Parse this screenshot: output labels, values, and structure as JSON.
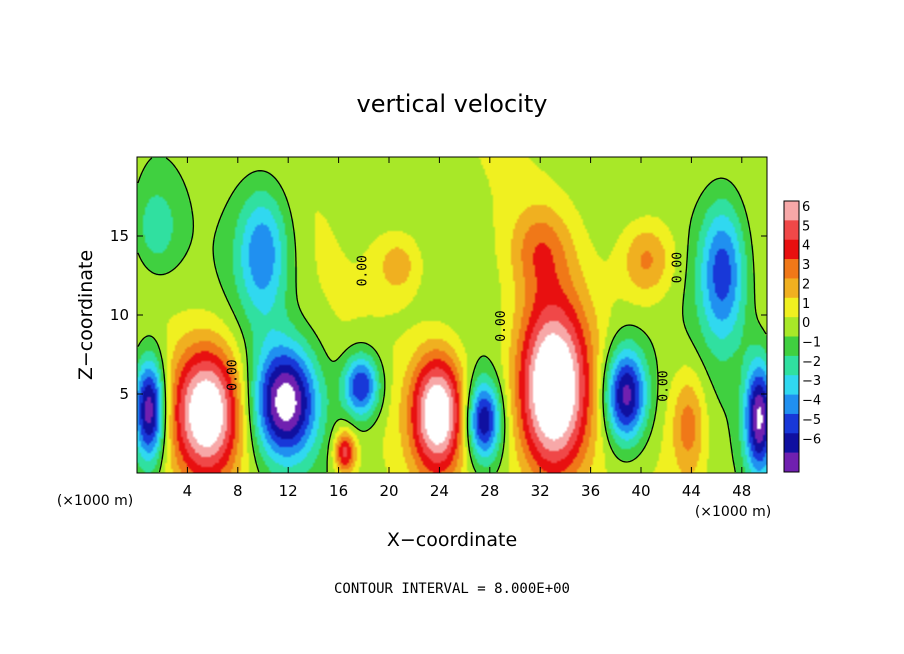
{
  "chart_data": {
    "type": "heatmap",
    "title": "vertical velocity",
    "xlabel": "X−coordinate",
    "ylabel": "Z−coordinate",
    "x_unit_left": "(×1000 m)",
    "x_unit_right": "(×1000 m)",
    "footer": "CONTOUR INTERVAL = 8.000E+00",
    "xlim": [
      0,
      50
    ],
    "ylim": [
      0,
      20
    ],
    "x_ticks": [
      "4",
      "8",
      "12",
      "16",
      "20",
      "24",
      "28",
      "32",
      "36",
      "40",
      "44",
      "48"
    ],
    "x_tick_values": [
      4,
      8,
      12,
      16,
      20,
      24,
      28,
      32,
      36,
      40,
      44,
      48
    ],
    "y_ticks": [
      "5",
      "10",
      "15"
    ],
    "y_tick_values": [
      5,
      10,
      15
    ],
    "colorbar": {
      "labels": [
        "6",
        "5",
        "4",
        "3",
        "2",
        "1",
        "0",
        "−1",
        "−2",
        "−3",
        "−4",
        "−5",
        "−6"
      ],
      "colors": [
        "#f7a8a8",
        "#f04848",
        "#e81010",
        "#f07818",
        "#f0b020",
        "#f0f020",
        "#a8e828",
        "#40d040",
        "#30e0a0",
        "#30d8f0",
        "#2090f0",
        "#1838d8",
        "#1010a0",
        "#7020b0"
      ]
    },
    "contour_labels": [
      {
        "text": "0.00",
        "x": 18.2,
        "z": 12.8
      },
      {
        "text": "0.00",
        "x": 43.2,
        "z": 13.0
      },
      {
        "text": "0.00",
        "x": 29.2,
        "z": 9.3
      },
      {
        "text": "0.00",
        "x": 7.9,
        "z": 6.2
      },
      {
        "text": "0.00",
        "x": 42.1,
        "z": 5.5
      }
    ],
    "features": [
      {
        "kind": "updraft",
        "x": 5.6,
        "z": 3.9,
        "rx": 2.6,
        "rz": 4.0,
        "w": 8
      },
      {
        "kind": "updraft",
        "x": 23.9,
        "z": 3.8,
        "rx": 2.0,
        "rz": 3.6,
        "w": 8
      },
      {
        "kind": "updraft",
        "x": 33.0,
        "z": 5.2,
        "rx": 2.7,
        "rz": 5.4,
        "w": 9
      },
      {
        "kind": "updraft",
        "x": 16.5,
        "z": 1.3,
        "rx": 0.8,
        "rz": 1.3,
        "w": 5
      },
      {
        "kind": "updraft",
        "x": 43.8,
        "z": 3.1,
        "rx": 1.3,
        "rz": 3.2,
        "w": 3
      },
      {
        "kind": "updraft",
        "x": 32.0,
        "z": 14.2,
        "rx": 2.2,
        "rz": 2.6,
        "w": 2.4
      },
      {
        "kind": "updraft",
        "x": 40.5,
        "z": 13.5,
        "rx": 2.0,
        "rz": 2.4,
        "w": 3
      },
      {
        "kind": "updraft",
        "x": 20.8,
        "z": 13.2,
        "rx": 1.8,
        "rz": 2.0,
        "w": 2.2
      },
      {
        "kind": "downdraft",
        "x": 11.8,
        "z": 4.5,
        "rx": 2.4,
        "rz": 3.4,
        "w": -8
      },
      {
        "kind": "downdraft",
        "x": 1.0,
        "z": 4.0,
        "rx": 1.2,
        "rz": 3.2,
        "w": -8
      },
      {
        "kind": "downdraft",
        "x": 38.8,
        "z": 4.9,
        "rx": 1.6,
        "rz": 2.9,
        "w": -7.5
      },
      {
        "kind": "downdraft",
        "x": 27.5,
        "z": 3.3,
        "rx": 1.3,
        "rz": 2.4,
        "w": -6.5
      },
      {
        "kind": "downdraft",
        "x": 17.8,
        "z": 5.5,
        "rx": 1.4,
        "rz": 2.0,
        "w": -6
      },
      {
        "kind": "downdraft",
        "x": 49.4,
        "z": 3.5,
        "rx": 1.1,
        "rz": 3.4,
        "w": -7.5
      },
      {
        "kind": "downdraft",
        "x": 10.0,
        "z": 14.0,
        "rx": 2.0,
        "rz": 4.0,
        "w": -4.5
      },
      {
        "kind": "downdraft",
        "x": 46.5,
        "z": 12.8,
        "rx": 1.8,
        "rz": 4.4,
        "w": -5.2
      },
      {
        "kind": "downdraft",
        "x": 1.5,
        "z": 15.5,
        "rx": 1.6,
        "rz": 2.5,
        "w": -2.2
      }
    ]
  }
}
